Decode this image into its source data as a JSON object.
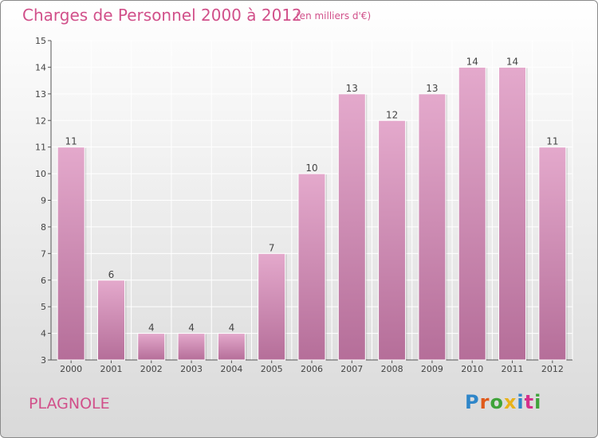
{
  "header": {
    "title": "Charges de Personnel 2000 à 2012",
    "subtitle": "(en milliers d'€)"
  },
  "footer": {
    "commune": "PLAGNOLE",
    "logo_text": "Proxiti"
  },
  "colors": {
    "title": "#d1508a",
    "bar_top": "#e4a9cc",
    "bar_bottom": "#b56e99",
    "logo": [
      "#2f86c9",
      "#e05a1b",
      "#3fa33a",
      "#e8b21a",
      "#2f86c9",
      "#d42f8c",
      "#3fa33a"
    ]
  },
  "chart_data": {
    "type": "bar",
    "categories": [
      "2000",
      "2001",
      "2002",
      "2003",
      "2004",
      "2005",
      "2006",
      "2007",
      "2008",
      "2009",
      "2010",
      "2011",
      "2012"
    ],
    "values": [
      11,
      6,
      4,
      4,
      4,
      7,
      10,
      13,
      12,
      13,
      14,
      14,
      11
    ],
    "ylim": [
      3,
      15
    ],
    "yticks": [
      3,
      4,
      5,
      6,
      7,
      8,
      9,
      10,
      11,
      12,
      13,
      14,
      15
    ],
    "grid": true
  }
}
